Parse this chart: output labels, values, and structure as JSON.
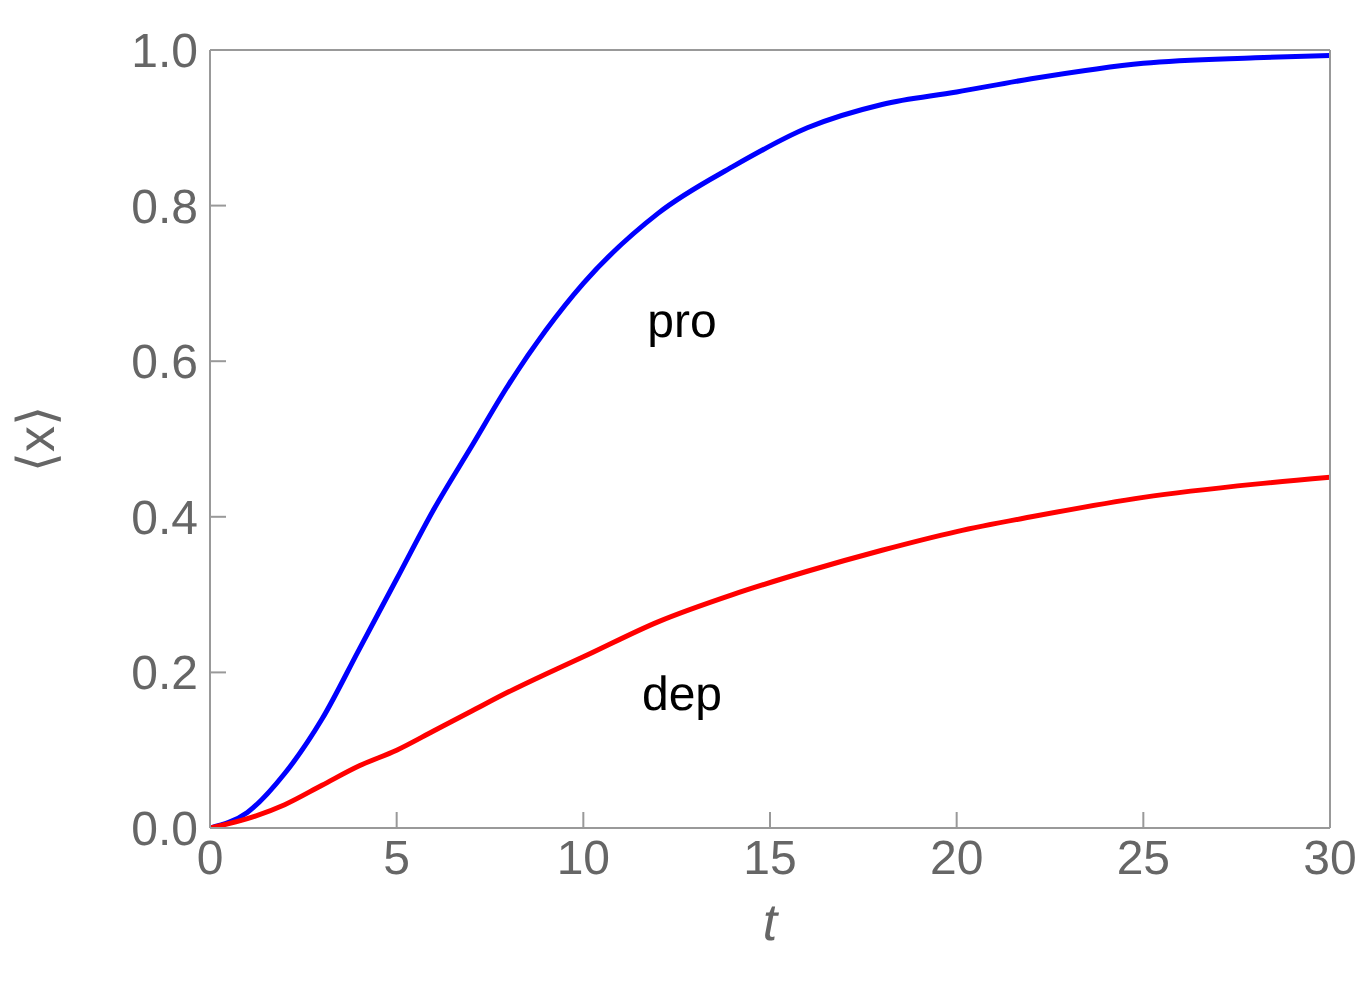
{
  "chart_data": {
    "type": "line",
    "xlabel": "t",
    "ylabel": "⟨x⟩",
    "x": [
      0,
      1,
      2,
      3,
      4,
      5,
      6,
      7,
      8,
      9,
      10,
      12,
      14,
      16,
      18,
      20,
      22,
      25,
      28,
      30
    ],
    "series": [
      {
        "name": "pro",
        "color": "#0000ff",
        "values": [
          0,
          0.02,
          0.07,
          0.14,
          0.23,
          0.32,
          0.41,
          0.49,
          0.57,
          0.64,
          0.7,
          0.79,
          0.85,
          0.9,
          0.93,
          0.946,
          0.963,
          0.983,
          0.99,
          0.993
        ]
      },
      {
        "name": "dep",
        "color": "#ff0000",
        "values": [
          0,
          0.012,
          0.03,
          0.055,
          0.08,
          0.1,
          0.125,
          0.15,
          0.175,
          0.198,
          0.22,
          0.265,
          0.3,
          0.33,
          0.357,
          0.381,
          0.4,
          0.425,
          0.442,
          0.451
        ]
      }
    ],
    "xlim": [
      0,
      30
    ],
    "xticks": [
      0,
      5,
      10,
      15,
      20,
      25,
      30
    ],
    "ylim": [
      0,
      1
    ],
    "yticks": [
      {
        "value": 0,
        "label": "0.0"
      },
      {
        "value": 0.2,
        "label": "0.2"
      },
      {
        "value": 0.4,
        "label": "0.4"
      },
      {
        "value": 0.6,
        "label": "0.6"
      },
      {
        "value": 0.8,
        "label": "0.8"
      },
      {
        "value": 1,
        "label": "1.0"
      }
    ],
    "grid": false,
    "legend": false,
    "marker": "none",
    "line_style": "solid"
  }
}
